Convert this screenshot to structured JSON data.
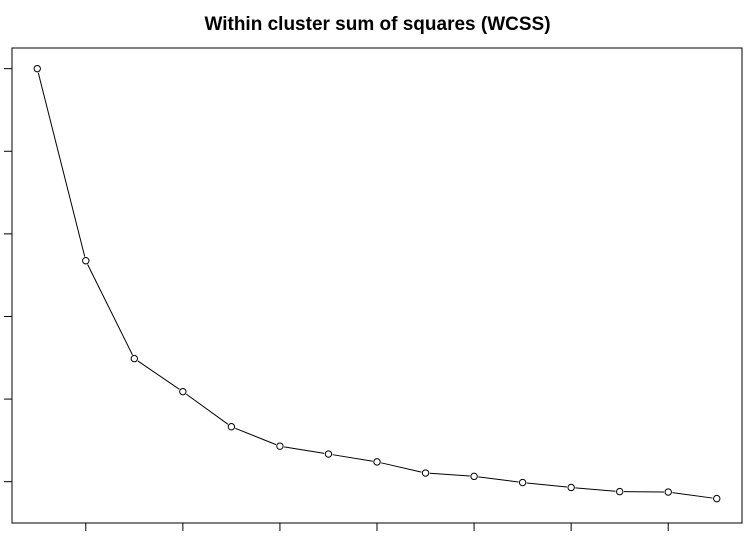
{
  "chart_data": {
    "type": "line",
    "title": "Within cluster sum of squares (WCSS)",
    "xlabel": "",
    "ylabel": "",
    "marker": "open-circle",
    "line_color": "#000000",
    "x": [
      1,
      2,
      3,
      4,
      5,
      6,
      7,
      8,
      9,
      10,
      11,
      12,
      13,
      14,
      15
    ],
    "values": [
      10.0,
      5.35,
      2.98,
      2.18,
      1.33,
      0.86,
      0.67,
      0.48,
      0.21,
      0.13,
      -0.02,
      -0.14,
      -0.24,
      -0.25,
      -0.41
    ],
    "xlim": [
      0.48,
      15.52
    ],
    "ylim": [
      -1.0,
      10.5
    ],
    "x_ticks": [
      2,
      4,
      6,
      8,
      10,
      12,
      14
    ],
    "y_ticks": [
      0,
      2,
      4,
      6,
      8,
      10
    ],
    "grid": false,
    "legend": "none"
  }
}
